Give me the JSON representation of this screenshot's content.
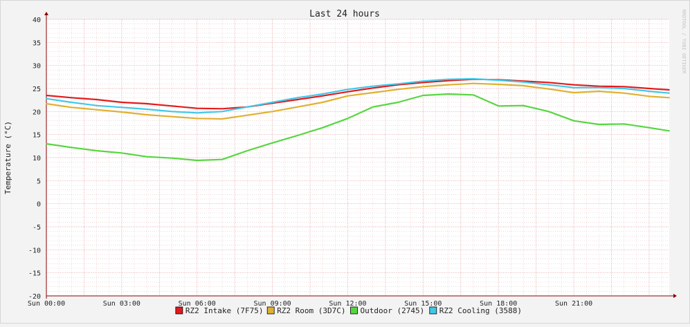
{
  "watermark": "RRDTOOL / TOBI OETIKER",
  "colors": {
    "background": "#f3f3f3",
    "canvas": "#ffffff",
    "grid_minor": "#e8c0c0",
    "grid_major": "#e08a8a",
    "axis": "#8b0000",
    "text": "#222222"
  },
  "chart_data": {
    "type": "line",
    "title": "Last 24 hours",
    "ylabel": "Temperature (°C)",
    "xlabel": "",
    "ylim": [
      -20,
      40
    ],
    "yticks": [
      40,
      35,
      30,
      25,
      20,
      15,
      10,
      5,
      0,
      -5,
      -10,
      -15,
      -20
    ],
    "xlim": [
      0,
      24.8
    ],
    "xticks": [
      {
        "label": "Sun 00:00",
        "hour": 0
      },
      {
        "label": "Sun 03:00",
        "hour": 3
      },
      {
        "label": "Sun 06:00",
        "hour": 6
      },
      {
        "label": "Sun 09:00",
        "hour": 9
      },
      {
        "label": "Sun 12:00",
        "hour": 12
      },
      {
        "label": "Sun 15:00",
        "hour": 15
      },
      {
        "label": "Sun 18:00",
        "hour": 18
      },
      {
        "label": "Sun 21:00",
        "hour": 21
      }
    ],
    "x_hours": [
      0,
      1,
      2,
      3,
      4,
      5,
      6,
      7,
      8,
      9,
      10,
      11,
      12,
      13,
      14,
      15,
      16,
      17,
      18,
      19,
      20,
      21,
      22,
      23,
      24,
      24.8
    ],
    "grid": true,
    "legend_position": "bottom",
    "series": [
      {
        "name": "RZ2 Intake (7F75)",
        "color": "#e31a1c",
        "values": [
          23.5,
          23.0,
          22.6,
          22.0,
          21.7,
          21.2,
          20.7,
          20.6,
          21.0,
          21.8,
          22.6,
          23.4,
          24.3,
          25.1,
          25.8,
          26.3,
          26.7,
          27.0,
          26.9,
          26.6,
          26.3,
          25.8,
          25.5,
          25.4,
          25.0,
          24.7
        ]
      },
      {
        "name": "RZ2 Room (3D7C)",
        "color": "#e0b030",
        "values": [
          21.7,
          20.9,
          20.4,
          19.9,
          19.3,
          18.9,
          18.5,
          18.4,
          19.2,
          20.0,
          21.0,
          22.0,
          23.4,
          24.1,
          24.8,
          25.4,
          25.8,
          26.1,
          25.9,
          25.6,
          24.9,
          24.1,
          24.4,
          24.0,
          23.3,
          23.0
        ]
      },
      {
        "name": "Outdoor (2745)",
        "color": "#55d640",
        "values": [
          13.0,
          12.2,
          11.5,
          11.0,
          10.2,
          9.9,
          9.4,
          9.6,
          11.5,
          13.2,
          14.8,
          16.5,
          18.5,
          21.0,
          22.0,
          23.5,
          23.8,
          23.6,
          21.2,
          21.3,
          20.0,
          18.0,
          17.2,
          17.3,
          16.5,
          15.8
        ]
      },
      {
        "name": "RZ2 Cooling (3588)",
        "color": "#40c8e8",
        "values": [
          22.8,
          22.0,
          21.3,
          20.9,
          20.5,
          20.0,
          19.7,
          20.0,
          21.0,
          22.0,
          23.0,
          23.8,
          24.8,
          25.5,
          26.0,
          26.6,
          27.0,
          27.1,
          26.8,
          26.4,
          25.8,
          25.2,
          25.2,
          25.0,
          24.4,
          24.0
        ]
      }
    ]
  }
}
